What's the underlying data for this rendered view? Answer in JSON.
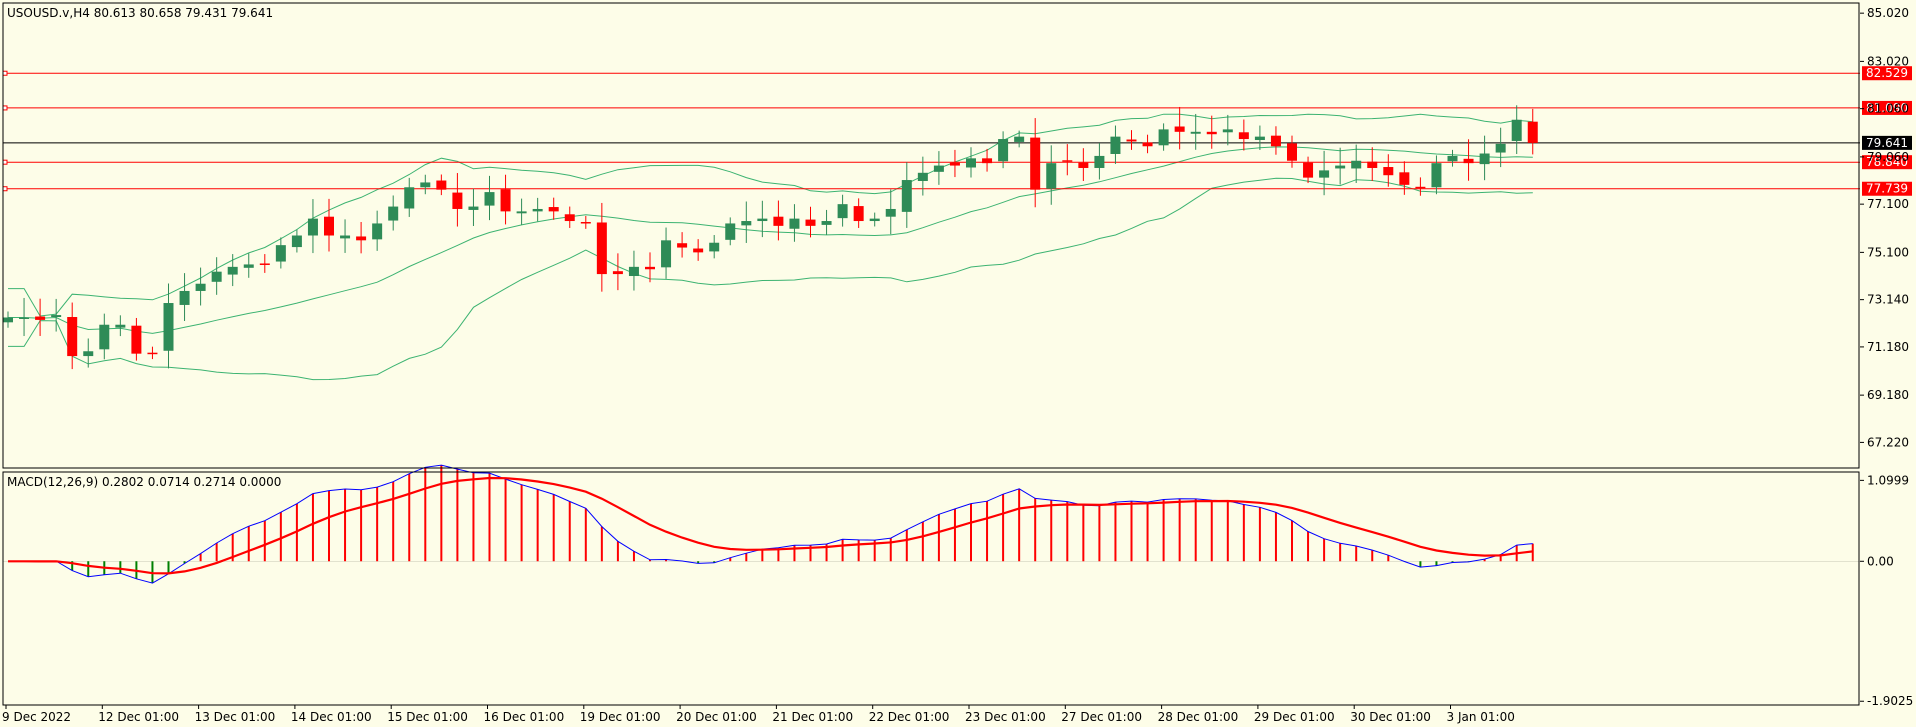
{
  "chart_data": {
    "type": "candlestick",
    "symbol_header": "USOUSD.v,H4  80.613 80.658 79.431 79.641",
    "price_axis_ticks": [
      "85.020",
      "83.020",
      "81.060",
      "79.060",
      "77.100",
      "75.100",
      "73.140",
      "71.180",
      "69.180",
      "67.220"
    ],
    "price_ylim": [
      66.2,
      85.4
    ],
    "current_price": "79.641",
    "current_price_value": 79.641,
    "horizontal_levels": [
      {
        "label": "82.529",
        "value": 82.529
      },
      {
        "label": "81.090",
        "value": 81.09
      },
      {
        "label": "78.840",
        "value": 78.84
      },
      {
        "label": "77.739",
        "value": 77.739
      }
    ],
    "time_labels": [
      "9 Dec 2022",
      "12 Dec 01:00",
      "13 Dec 01:00",
      "14 Dec 01:00",
      "15 Dec 01:00",
      "16 Dec 01:00",
      "19 Dec 01:00",
      "20 Dec 01:00",
      "21 Dec 01:00",
      "22 Dec 01:00",
      "23 Dec 01:00",
      "27 Dec 01:00",
      "28 Dec 01:00",
      "29 Dec 01:00",
      "30 Dec 01:00",
      "3 Jan 01:00"
    ],
    "candle_close": [
      72.4,
      72.4,
      72.3,
      72.5,
      70.8,
      71.0,
      72.1,
      72.1,
      70.9,
      70.9,
      73.0,
      73.5,
      73.8,
      74.3,
      74.5,
      74.6,
      74.6,
      75.4,
      75.8,
      76.5,
      75.8,
      75.8,
      75.6,
      76.3,
      77.0,
      77.8,
      78.0,
      77.7,
      76.9,
      77.0,
      77.6,
      76.8,
      76.8,
      76.9,
      76.8,
      76.4,
      76.3,
      74.2,
      74.2,
      74.5,
      74.4,
      75.6,
      75.3,
      75.1,
      75.5,
      76.3,
      76.4,
      76.5,
      76.2,
      76.5,
      76.2,
      76.4,
      77.1,
      76.4,
      76.5,
      76.9,
      78.1,
      78.4,
      78.7,
      78.7,
      79.0,
      78.8,
      79.8,
      79.9,
      77.7,
      78.8,
      78.9,
      78.6,
      79.1,
      79.9,
      79.7,
      79.5,
      80.2,
      80.1,
      80.1,
      80.0,
      80.2,
      79.8,
      79.9,
      79.5,
      78.9,
      78.2,
      78.5,
      78.7,
      78.9,
      78.6,
      78.3,
      77.9,
      77.8,
      78.8,
      79.1,
      78.8,
      79.2,
      79.6,
      80.6,
      79.64
    ],
    "macd_header": "MACD(12,26,9) 0.2802 0.0714 0.2714 0.0000",
    "macd_axis_ticks": [
      "1.0999",
      "0.00",
      "-1.9025"
    ],
    "macd_ylim": [
      -1.94,
      1.2
    ]
  }
}
